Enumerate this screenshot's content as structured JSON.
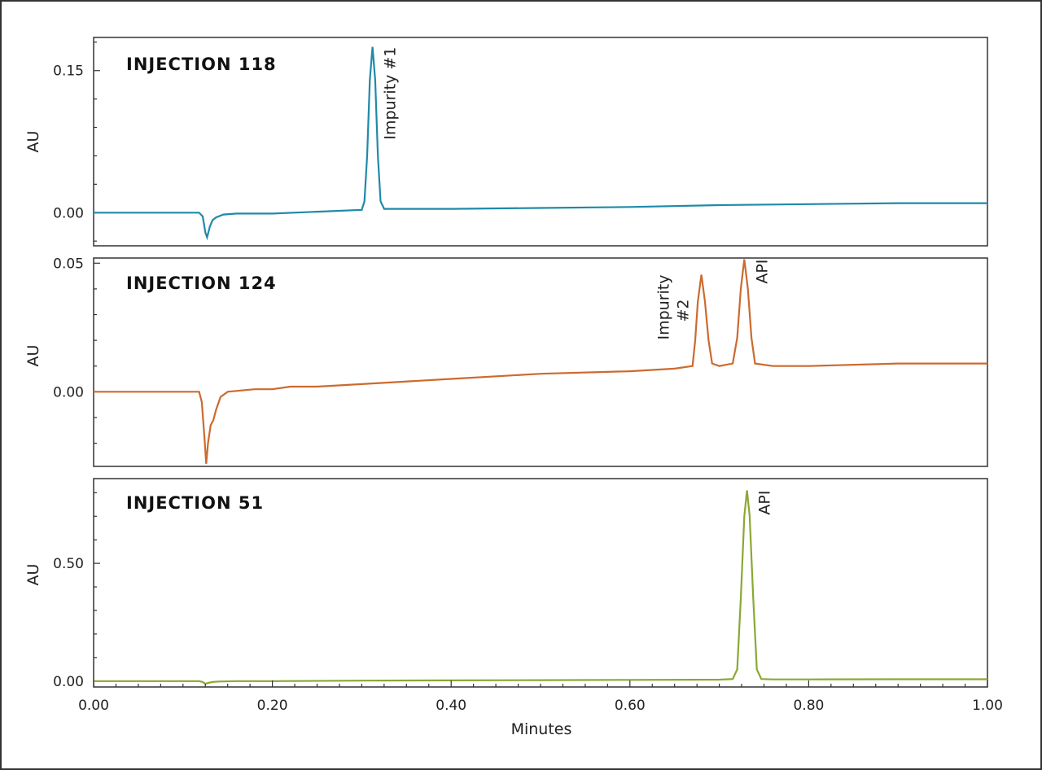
{
  "chart_data": [
    {
      "type": "line",
      "title": "INJECTION 118",
      "ylabel": "AU",
      "ylim": [
        -0.035,
        0.185
      ],
      "yticks": [
        0.0,
        0.15
      ],
      "ytick_labels": [
        "0.00",
        "0.15"
      ],
      "xlim": [
        0.0,
        1.0
      ],
      "color": "#1f8aa8",
      "points": [
        [
          0.0,
          0.0
        ],
        [
          0.1,
          0.0
        ],
        [
          0.118,
          0.0
        ],
        [
          0.122,
          -0.004
        ],
        [
          0.125,
          -0.021
        ],
        [
          0.127,
          -0.026
        ],
        [
          0.13,
          -0.015
        ],
        [
          0.133,
          -0.008
        ],
        [
          0.137,
          -0.005
        ],
        [
          0.145,
          -0.002
        ],
        [
          0.16,
          -0.001
        ],
        [
          0.2,
          -0.001
        ],
        [
          0.25,
          0.001
        ],
        [
          0.3,
          0.003
        ],
        [
          0.303,
          0.012
        ],
        [
          0.306,
          0.06
        ],
        [
          0.309,
          0.14
        ],
        [
          0.312,
          0.175
        ],
        [
          0.315,
          0.14
        ],
        [
          0.318,
          0.06
        ],
        [
          0.321,
          0.012
        ],
        [
          0.325,
          0.004
        ],
        [
          0.35,
          0.004
        ],
        [
          0.4,
          0.004
        ],
        [
          0.5,
          0.005
        ],
        [
          0.6,
          0.006
        ],
        [
          0.7,
          0.008
        ],
        [
          0.8,
          0.009
        ],
        [
          0.9,
          0.01
        ],
        [
          1.0,
          0.01
        ]
      ],
      "annotations": [
        {
          "text": "Impurity #1",
          "x": 0.312,
          "y": 0.175
        }
      ]
    },
    {
      "type": "line",
      "title": "INJECTION 124",
      "ylabel": "AU",
      "ylim": [
        -0.029,
        0.052
      ],
      "yticks": [
        0.0,
        0.05
      ],
      "ytick_labels": [
        "0.00",
        "0.05"
      ],
      "xlim": [
        0.0,
        1.0
      ],
      "color": "#cc6a2e",
      "points": [
        [
          0.0,
          0.0
        ],
        [
          0.1,
          0.0
        ],
        [
          0.118,
          0.0
        ],
        [
          0.121,
          -0.004
        ],
        [
          0.124,
          -0.018
        ],
        [
          0.126,
          -0.028
        ],
        [
          0.128,
          -0.02
        ],
        [
          0.131,
          -0.013
        ],
        [
          0.134,
          -0.011
        ],
        [
          0.137,
          -0.007
        ],
        [
          0.142,
          -0.002
        ],
        [
          0.15,
          0.0
        ],
        [
          0.18,
          0.001
        ],
        [
          0.2,
          0.001
        ],
        [
          0.22,
          0.002
        ],
        [
          0.25,
          0.002
        ],
        [
          0.3,
          0.003
        ],
        [
          0.4,
          0.005
        ],
        [
          0.5,
          0.007
        ],
        [
          0.6,
          0.008
        ],
        [
          0.65,
          0.009
        ],
        [
          0.67,
          0.01
        ],
        [
          0.673,
          0.02
        ],
        [
          0.676,
          0.035
        ],
        [
          0.68,
          0.0455
        ],
        [
          0.684,
          0.035
        ],
        [
          0.688,
          0.02
        ],
        [
          0.692,
          0.011
        ],
        [
          0.7,
          0.01
        ],
        [
          0.715,
          0.011
        ],
        [
          0.72,
          0.021
        ],
        [
          0.724,
          0.04
        ],
        [
          0.728,
          0.0515
        ],
        [
          0.732,
          0.04
        ],
        [
          0.736,
          0.021
        ],
        [
          0.74,
          0.011
        ],
        [
          0.76,
          0.01
        ],
        [
          0.8,
          0.01
        ],
        [
          0.9,
          0.011
        ],
        [
          1.0,
          0.011
        ]
      ],
      "annotations": [
        {
          "text": "Impurity",
          "x": 0.68,
          "y": 0.0455
        },
        {
          "text": "#2",
          "x": 0.68,
          "y": 0.0455
        },
        {
          "text": "API",
          "x": 0.728,
          "y": 0.0515
        }
      ]
    },
    {
      "type": "line",
      "title": "INJECTION 51",
      "ylabel": "AU",
      "ylim": [
        -0.025,
        0.86
      ],
      "yticks": [
        0.0,
        0.5
      ],
      "ytick_labels": [
        "0.00",
        "0.50"
      ],
      "xlim": [
        0.0,
        1.0
      ],
      "xticks": [
        0.0,
        0.2,
        0.4,
        0.6,
        0.8,
        1.0
      ],
      "xtick_labels": [
        "0.00",
        "0.20",
        "0.40",
        "0.60",
        "0.80",
        "1.00"
      ],
      "xlabel": "Minutes",
      "color": "#8aa833",
      "points": [
        [
          0.0,
          0.0
        ],
        [
          0.1,
          0.0
        ],
        [
          0.118,
          0.0
        ],
        [
          0.122,
          -0.004
        ],
        [
          0.125,
          -0.012
        ],
        [
          0.128,
          -0.008
        ],
        [
          0.133,
          -0.004
        ],
        [
          0.14,
          -0.002
        ],
        [
          0.16,
          0.0
        ],
        [
          0.2,
          0.0
        ],
        [
          0.3,
          0.002
        ],
        [
          0.4,
          0.003
        ],
        [
          0.5,
          0.004
        ],
        [
          0.6,
          0.005
        ],
        [
          0.7,
          0.006
        ],
        [
          0.715,
          0.009
        ],
        [
          0.72,
          0.05
        ],
        [
          0.724,
          0.35
        ],
        [
          0.728,
          0.7
        ],
        [
          0.731,
          0.81
        ],
        [
          0.734,
          0.7
        ],
        [
          0.738,
          0.35
        ],
        [
          0.742,
          0.05
        ],
        [
          0.747,
          0.009
        ],
        [
          0.76,
          0.007
        ],
        [
          0.8,
          0.007
        ],
        [
          0.9,
          0.008
        ],
        [
          1.0,
          0.008
        ]
      ],
      "annotations": [
        {
          "text": "API",
          "x": 0.731,
          "y": 0.81
        }
      ]
    }
  ]
}
